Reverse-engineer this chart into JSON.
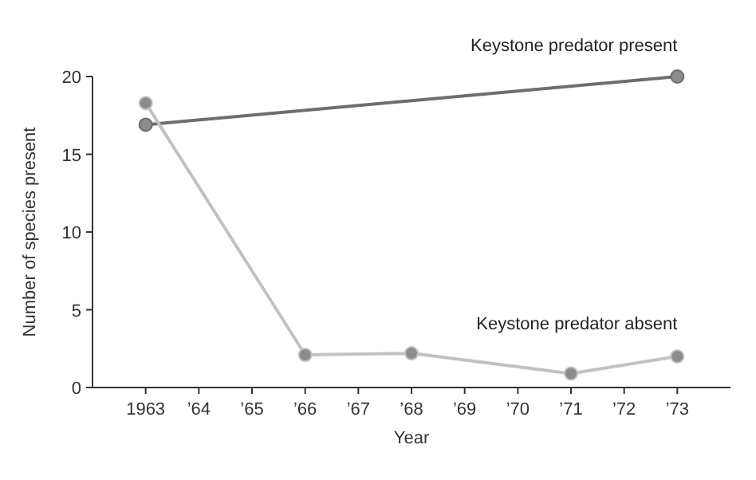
{
  "chart_data": {
    "type": "line",
    "xlabel": "Year",
    "ylabel": "Number of species present",
    "xlim": [
      1962,
      1974
    ],
    "ylim": [
      0,
      20
    ],
    "xticks": [
      1963,
      {
        "value": 1964,
        "label": "’64"
      },
      {
        "value": 1965,
        "label": "’65"
      },
      {
        "value": 1966,
        "label": "’66"
      },
      {
        "value": 1967,
        "label": "’67"
      },
      {
        "value": 1968,
        "label": "’68"
      },
      {
        "value": 1969,
        "label": "’69"
      },
      {
        "value": 1970,
        "label": "’70"
      },
      {
        "value": 1971,
        "label": "’71"
      },
      {
        "value": 1972,
        "label": "’72"
      },
      {
        "value": 1973,
        "label": "’73"
      }
    ],
    "yticks": [
      0,
      5,
      10,
      15,
      20
    ],
    "marker": "circle",
    "grid": false,
    "series": [
      {
        "name": "Keystone predator present",
        "color": "#6e6e6e",
        "x": [
          1963,
          1973
        ],
        "values": [
          16.9,
          20
        ]
      },
      {
        "name": "Keystone predator absent",
        "color": "#c2c2c2",
        "x": [
          1963,
          1966,
          1968,
          1971,
          1973
        ],
        "values": [
          18.3,
          2.1,
          2.2,
          0.9,
          2.0
        ]
      }
    ]
  }
}
